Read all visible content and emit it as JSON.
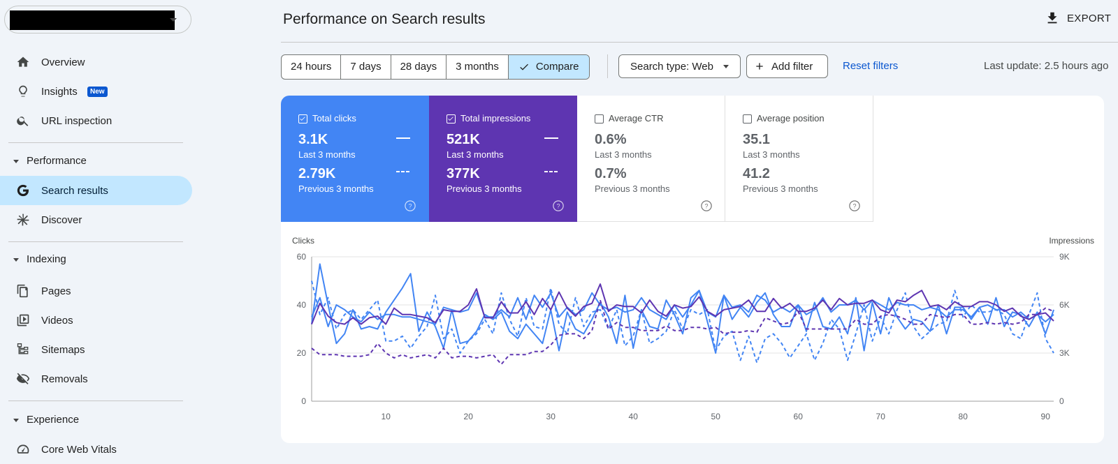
{
  "sidebar": {
    "nav": [
      {
        "label": "Overview",
        "icon": "home-icon"
      },
      {
        "label": "Insights",
        "icon": "lightbulb-icon",
        "badge": "New"
      },
      {
        "label": "URL inspection",
        "icon": "search-icon"
      }
    ],
    "sections": [
      {
        "label": "Performance",
        "items": [
          {
            "label": "Search results",
            "icon": "google-g-icon",
            "active": true
          },
          {
            "label": "Discover",
            "icon": "asterisk-icon"
          }
        ]
      },
      {
        "label": "Indexing",
        "items": [
          {
            "label": "Pages",
            "icon": "pages-icon"
          },
          {
            "label": "Videos",
            "icon": "video-icon"
          },
          {
            "label": "Sitemaps",
            "icon": "sitemap-icon"
          },
          {
            "label": "Removals",
            "icon": "eye-off-icon"
          }
        ]
      },
      {
        "label": "Experience",
        "items": [
          {
            "label": "Core Web Vitals",
            "icon": "gauge-icon"
          }
        ]
      }
    ]
  },
  "header": {
    "title": "Performance on Search results",
    "export_label": "EXPORT"
  },
  "toolbar": {
    "ranges": [
      "24 hours",
      "7 days",
      "28 days",
      "3 months"
    ],
    "compare_label": "Compare",
    "search_type_label": "Search type: Web",
    "add_filter_label": "Add filter",
    "reset_label": "Reset filters",
    "last_update": "Last update: 2.5 hours ago"
  },
  "metrics": [
    {
      "name": "Total clicks",
      "v1": "3.1K",
      "p1": "Last 3 months",
      "v2": "2.79K",
      "p2": "Previous 3 months",
      "checked": true,
      "color": "#4285f4"
    },
    {
      "name": "Total impressions",
      "v1": "521K",
      "p1": "Last 3 months",
      "v2": "377K",
      "p2": "Previous 3 months",
      "checked": true,
      "color": "#5e35b1"
    },
    {
      "name": "Average CTR",
      "v1": "0.6%",
      "p1": "Last 3 months",
      "v2": "0.7%",
      "p2": "Previous 3 months",
      "checked": false
    },
    {
      "name": "Average position",
      "v1": "35.1",
      "p1": "Last 3 months",
      "v2": "41.2",
      "p2": "Previous 3 months",
      "checked": false
    }
  ],
  "chart_data": {
    "type": "line",
    "ylabel_left": "Clicks",
    "ylabel_right": "Impressions",
    "ylim_left": [
      0,
      60
    ],
    "yticks_left": [
      "0",
      "20",
      "40",
      "60"
    ],
    "ylim_right": [
      0,
      9000
    ],
    "yticks_right": [
      "0",
      "3K",
      "6K",
      "9K"
    ],
    "xlim": [
      1,
      91
    ],
    "xticks": [
      "10",
      "20",
      "30",
      "40",
      "50",
      "60",
      "70",
      "80",
      "90"
    ],
    "x_tick_values": [
      10,
      20,
      30,
      40,
      50,
      60,
      70,
      80,
      90
    ],
    "grid": true,
    "series": [
      {
        "color": "#4285f4",
        "axis": "left",
        "dashed": false,
        "values": [
          32,
          57,
          40,
          24,
          28,
          38,
          30,
          31,
          30,
          37,
          42,
          47,
          53,
          29,
          37,
          31,
          22,
          38,
          24,
          25,
          29,
          36,
          34,
          37,
          29,
          26,
          32,
          28,
          24,
          38,
          21,
          37,
          30,
          28,
          34,
          41,
          35,
          24,
          44,
          22,
          38,
          31,
          30,
          42,
          36,
          28,
          43,
          46,
          33,
          20,
          44,
          34,
          39,
          35,
          41,
          45,
          36,
          31,
          31,
          40,
          29,
          41,
          31,
          30,
          35,
          28,
          43,
          21,
          41,
          28,
          43,
          35,
          30,
          34,
          33,
          29,
          40,
          28,
          39,
          39,
          34,
          39,
          32,
          43,
          31,
          37,
          36,
          31,
          37,
          28,
          38
        ]
      },
      {
        "color": "#4285f4",
        "axis": "left",
        "dashed": false,
        "values": [
          35,
          43,
          31,
          40,
          38,
          35,
          33,
          37,
          34,
          36,
          36,
          35,
          35,
          34,
          33,
          32,
          39,
          38,
          37,
          38,
          45,
          35,
          35,
          38,
          35,
          43,
          34,
          44,
          39,
          45,
          35,
          39,
          36,
          38,
          45,
          40,
          38,
          39,
          37,
          38,
          43,
          38,
          36,
          34,
          40,
          35,
          40,
          46,
          37,
          35,
          44,
          39,
          40,
          37,
          44,
          42,
          37,
          39,
          37,
          40,
          36,
          38,
          43,
          37,
          40,
          40,
          42,
          38,
          42,
          40,
          38,
          41,
          40,
          40,
          38,
          39,
          38,
          35,
          38,
          38,
          35,
          39,
          40,
          38,
          38,
          35,
          37,
          34,
          36,
          33,
          36
        ]
      },
      {
        "color": "#4285f4",
        "axis": "left",
        "dashed": true,
        "values": [
          50,
          36,
          43,
          30,
          36,
          38,
          34,
          38,
          42,
          25,
          25,
          27,
          22,
          27,
          31,
          44,
          26,
          30,
          20,
          25,
          28,
          34,
          28,
          45,
          34,
          27,
          43,
          31,
          30,
          47,
          32,
          28,
          43,
          31,
          37,
          38,
          30,
          38,
          23,
          27,
          38,
          24,
          26,
          29,
          38,
          30,
          38,
          36,
          38,
          21,
          27,
          29,
          17,
          27,
          16,
          26,
          28,
          24,
          18,
          23,
          28,
          17,
          24,
          34,
          30,
          17,
          28,
          40,
          25,
          35,
          28,
          38,
          45,
          31,
          26,
          29,
          32,
          33,
          46,
          35,
          40,
          37,
          37,
          38,
          36,
          28,
          26,
          36,
          45,
          26,
          20
        ]
      },
      {
        "color": "#5e35b1",
        "axis": "right",
        "dashed": false,
        "values": [
          4800,
          6100,
          5300,
          4900,
          4800,
          5200,
          4800,
          5200,
          5300,
          4800,
          5800,
          5400,
          5400,
          5300,
          5200,
          4900,
          5700,
          5600,
          5600,
          6000,
          7000,
          5200,
          5200,
          6200,
          5500,
          5500,
          6200,
          5400,
          6400,
          5700,
          6800,
          5800,
          5300,
          5900,
          6100,
          7300,
          5600,
          6000,
          5900,
          5900,
          5500,
          6300,
          5600,
          5300,
          6000,
          5800,
          5900,
          6500,
          5600,
          5300,
          5700,
          5800,
          5900,
          6300,
          5600,
          5600,
          6400,
          5800,
          6100,
          5600,
          5600,
          5800,
          6300,
          5700,
          6400,
          6000,
          6100,
          6100,
          6300,
          5700,
          5500,
          6300,
          6200,
          6600,
          6900,
          5900,
          6000,
          5700,
          6200,
          5900,
          5900,
          6200,
          6200,
          6000,
          5600,
          5800,
          5300,
          5100,
          5400,
          5500,
          5000
        ]
      },
      {
        "color": "#5e35b1",
        "axis": "right",
        "dashed": true,
        "values": [
          3300,
          2900,
          2900,
          2900,
          2800,
          2800,
          2800,
          2900,
          3600,
          3000,
          2700,
          2900,
          2700,
          2800,
          2900,
          2700,
          3300,
          2700,
          2800,
          2800,
          2700,
          2800,
          2900,
          2300,
          2900,
          2900,
          2900,
          3100,
          3100,
          3500,
          4100,
          4200,
          4200,
          3900,
          4400,
          6300,
          4500,
          4900,
          4600,
          4600,
          4400,
          4400,
          4400,
          4700,
          4400,
          4400,
          4600,
          4600,
          4500,
          4600,
          4200,
          4300,
          4300,
          4400,
          4300,
          5200,
          5000,
          4800,
          4900,
          5600,
          4500,
          4500,
          4500,
          4500,
          4500,
          4500,
          5100,
          4800,
          4800,
          5300,
          5400,
          5300,
          5100,
          4800,
          4800,
          5400,
          5300,
          5200,
          5400,
          5400,
          4800,
          4800,
          4900,
          4800,
          4900,
          4800,
          4900,
          5400,
          5400,
          5800,
          5600
        ]
      }
    ]
  }
}
